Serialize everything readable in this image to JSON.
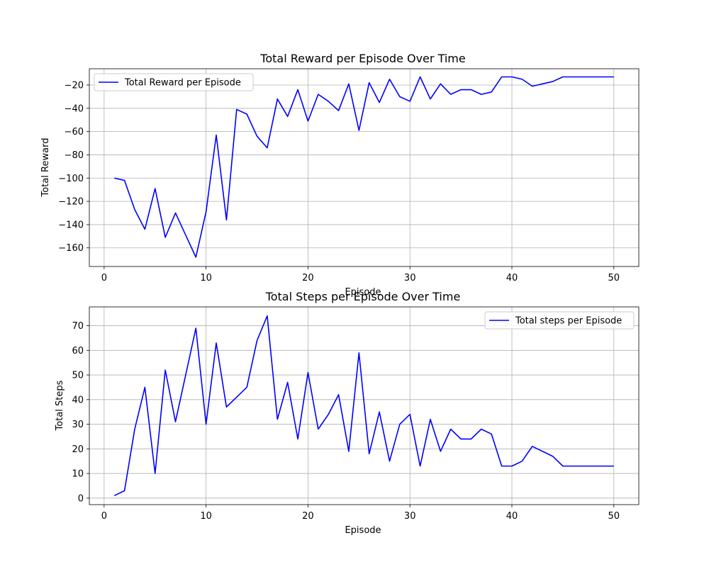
{
  "chart_data": [
    {
      "type": "line",
      "title": "Total Reward per Episode Over Time",
      "xlabel": "Episode",
      "ylabel": "Total Reward",
      "xlim": [
        -1.45,
        52.45
      ],
      "ylim": [
        -176,
        -6
      ],
      "xticks": [
        0,
        10,
        20,
        30,
        40,
        50
      ],
      "yticks": [
        -160,
        -140,
        -120,
        -100,
        -80,
        -60,
        -40,
        -20
      ],
      "grid": true,
      "legend_position": "upper left",
      "series": [
        {
          "name": "Total Reward per Episode",
          "color": "#0000ff",
          "x": [
            1,
            2,
            3,
            4,
            5,
            6,
            7,
            8,
            9,
            10,
            11,
            12,
            13,
            14,
            15,
            16,
            17,
            18,
            19,
            20,
            21,
            22,
            23,
            24,
            25,
            26,
            27,
            28,
            29,
            30,
            31,
            32,
            33,
            34,
            35,
            36,
            37,
            38,
            39,
            40,
            41,
            42,
            43,
            44,
            45,
            46,
            47,
            48,
            49,
            50
          ],
          "values": [
            -100,
            -102,
            -127,
            -144,
            -109,
            -151,
            -130,
            -149,
            -168,
            -129,
            -63,
            -136,
            -41,
            -45,
            -64,
            -74,
            -32,
            -47,
            -24,
            -51,
            -28,
            -34,
            -42,
            -19,
            -59,
            -18,
            -35,
            -15,
            -30,
            -34,
            -13,
            -32,
            -19,
            -28,
            -24,
            -24,
            -28,
            -26,
            -13,
            -13,
            -15,
            -21,
            -19,
            -17,
            -13,
            -13,
            -13,
            -13,
            -13,
            -13
          ]
        }
      ]
    },
    {
      "type": "line",
      "title": "Total Steps per Episode Over Time",
      "xlabel": "Episode",
      "ylabel": "Total Steps",
      "xlim": [
        -1.45,
        52.45
      ],
      "ylim": [
        -2.65,
        77.65
      ],
      "xticks": [
        0,
        10,
        20,
        30,
        40,
        50
      ],
      "yticks": [
        0,
        10,
        20,
        30,
        40,
        50,
        60,
        70
      ],
      "grid": true,
      "legend_position": "upper right",
      "series": [
        {
          "name": "Total steps per Episode",
          "color": "#0000ff",
          "x": [
            1,
            2,
            3,
            4,
            5,
            6,
            7,
            8,
            9,
            10,
            11,
            12,
            13,
            14,
            15,
            16,
            17,
            18,
            19,
            20,
            21,
            22,
            23,
            24,
            25,
            26,
            27,
            28,
            29,
            30,
            31,
            32,
            33,
            34,
            35,
            36,
            37,
            38,
            39,
            40,
            41,
            42,
            43,
            44,
            45,
            46,
            47,
            48,
            49,
            50
          ],
          "values": [
            1,
            3,
            28,
            45,
            10,
            52,
            31,
            50,
            69,
            30,
            63,
            37,
            41,
            45,
            64,
            74,
            32,
            47,
            24,
            51,
            28,
            34,
            42,
            19,
            59,
            18,
            35,
            15,
            30,
            34,
            13,
            32,
            19,
            28,
            24,
            24,
            28,
            26,
            13,
            13,
            15,
            21,
            19,
            17,
            13,
            13,
            13,
            13,
            13,
            13
          ]
        }
      ]
    }
  ]
}
